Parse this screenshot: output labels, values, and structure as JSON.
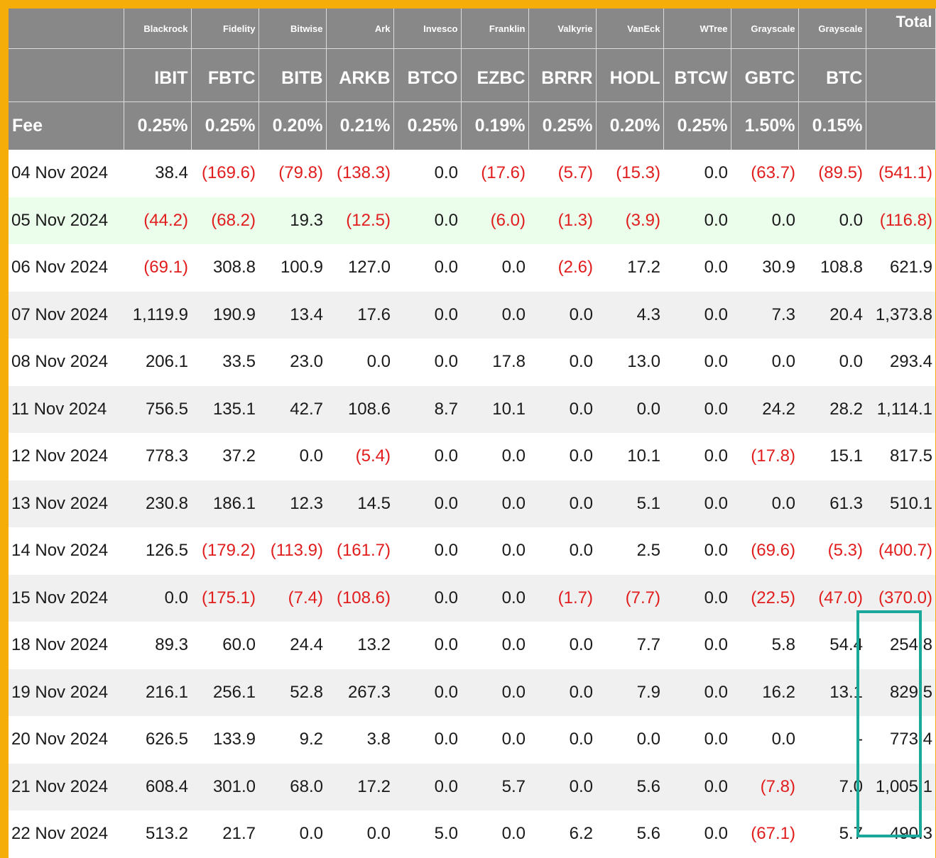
{
  "colors": {
    "frame": "#f5ad0a",
    "header_bg": "#888888",
    "negative": "#e11d1d",
    "highlight_row": "#ebfdeb",
    "highlight_box": "#1aa89a"
  },
  "header": {
    "issuers": [
      "Blackrock",
      "Fidelity",
      "Bitwise",
      "Ark",
      "Invesco",
      "Franklin",
      "Valkyrie",
      "VanEck",
      "WTree",
      "Grayscale",
      "Grayscale"
    ],
    "total_label": "Total",
    "tickers": [
      "IBIT",
      "FBTC",
      "BITB",
      "ARKB",
      "BTCO",
      "EZBC",
      "BRRR",
      "HODL",
      "BTCW",
      "GBTC",
      "BTC"
    ],
    "fee_label": "Fee",
    "fees": [
      "0.25%",
      "0.25%",
      "0.20%",
      "0.21%",
      "0.25%",
      "0.19%",
      "0.25%",
      "0.20%",
      "0.25%",
      "1.50%",
      "0.15%"
    ]
  },
  "rows": [
    {
      "date": "04 Nov 2024",
      "values": [
        "38.4",
        "(169.6)",
        "(79.8)",
        "(138.3)",
        "0.0",
        "(17.6)",
        "(5.7)",
        "(15.3)",
        "0.0",
        "(63.7)",
        "(89.5)"
      ],
      "total": "(541.1)"
    },
    {
      "date": "05 Nov 2024",
      "values": [
        "(44.2)",
        "(68.2)",
        "19.3",
        "(12.5)",
        "0.0",
        "(6.0)",
        "(1.3)",
        "(3.9)",
        "0.0",
        "0.0",
        "0.0"
      ],
      "total": "(116.8)"
    },
    {
      "date": "06 Nov 2024",
      "values": [
        "(69.1)",
        "308.8",
        "100.9",
        "127.0",
        "0.0",
        "0.0",
        "(2.6)",
        "17.2",
        "0.0",
        "30.9",
        "108.8"
      ],
      "total": "621.9"
    },
    {
      "date": "07 Nov 2024",
      "values": [
        "1,119.9",
        "190.9",
        "13.4",
        "17.6",
        "0.0",
        "0.0",
        "0.0",
        "4.3",
        "0.0",
        "7.3",
        "20.4"
      ],
      "total": "1,373.8"
    },
    {
      "date": "08 Nov 2024",
      "values": [
        "206.1",
        "33.5",
        "23.0",
        "0.0",
        "0.0",
        "17.8",
        "0.0",
        "13.0",
        "0.0",
        "0.0",
        "0.0"
      ],
      "total": "293.4"
    },
    {
      "date": "11 Nov 2024",
      "values": [
        "756.5",
        "135.1",
        "42.7",
        "108.6",
        "8.7",
        "10.1",
        "0.0",
        "0.0",
        "0.0",
        "24.2",
        "28.2"
      ],
      "total": "1,114.1"
    },
    {
      "date": "12 Nov 2024",
      "values": [
        "778.3",
        "37.2",
        "0.0",
        "(5.4)",
        "0.0",
        "0.0",
        "0.0",
        "10.1",
        "0.0",
        "(17.8)",
        "15.1"
      ],
      "total": "817.5"
    },
    {
      "date": "13 Nov 2024",
      "values": [
        "230.8",
        "186.1",
        "12.3",
        "14.5",
        "0.0",
        "0.0",
        "0.0",
        "5.1",
        "0.0",
        "0.0",
        "61.3"
      ],
      "total": "510.1"
    },
    {
      "date": "14 Nov 2024",
      "values": [
        "126.5",
        "(179.2)",
        "(113.9)",
        "(161.7)",
        "0.0",
        "0.0",
        "0.0",
        "2.5",
        "0.0",
        "(69.6)",
        "(5.3)"
      ],
      "total": "(400.7)"
    },
    {
      "date": "15 Nov 2024",
      "values": [
        "0.0",
        "(175.1)",
        "(7.4)",
        "(108.6)",
        "0.0",
        "0.0",
        "(1.7)",
        "(7.7)",
        "0.0",
        "(22.5)",
        "(47.0)"
      ],
      "total": "(370.0)"
    },
    {
      "date": "18 Nov 2024",
      "values": [
        "89.3",
        "60.0",
        "24.4",
        "13.2",
        "0.0",
        "0.0",
        "0.0",
        "7.7",
        "0.0",
        "5.8",
        "54.4"
      ],
      "total": "254.8"
    },
    {
      "date": "19 Nov 2024",
      "values": [
        "216.1",
        "256.1",
        "52.8",
        "267.3",
        "0.0",
        "0.0",
        "0.0",
        "7.9",
        "0.0",
        "16.2",
        "13.1"
      ],
      "total": "829.5"
    },
    {
      "date": "20 Nov 2024",
      "values": [
        "626.5",
        "133.9",
        "9.2",
        "3.8",
        "0.0",
        "0.0",
        "0.0",
        "0.0",
        "0.0",
        "0.0",
        "-"
      ],
      "total": "773.4"
    },
    {
      "date": "21 Nov 2024",
      "values": [
        "608.4",
        "301.0",
        "68.0",
        "17.2",
        "0.0",
        "5.7",
        "0.0",
        "5.6",
        "0.0",
        "(7.8)",
        "7.0"
      ],
      "total": "1,005.1"
    },
    {
      "date": "22 Nov 2024",
      "values": [
        "513.2",
        "21.7",
        "0.0",
        "0.0",
        "5.0",
        "0.0",
        "6.2",
        "5.6",
        "0.0",
        "(67.1)",
        "5.7"
      ],
      "total": "490.3"
    }
  ]
}
